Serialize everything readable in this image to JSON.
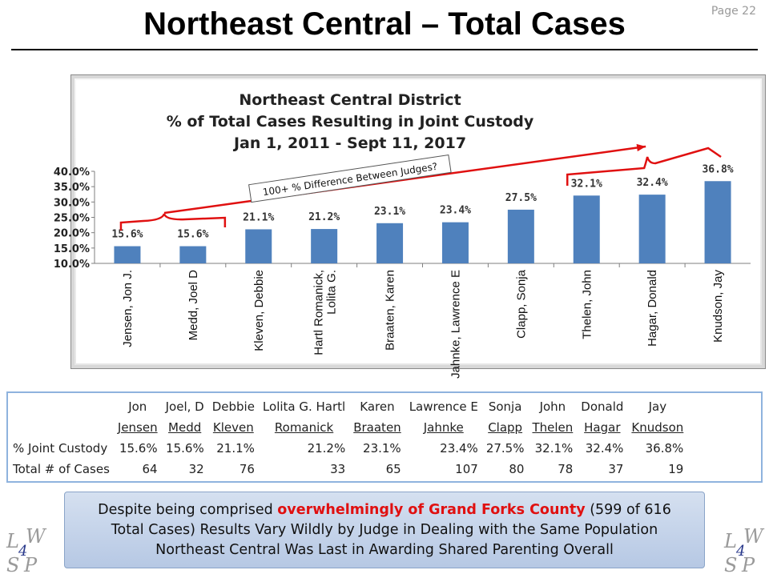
{
  "page": {
    "title": "Northeast Central – Total Cases",
    "page_number": "Page 22"
  },
  "chart_data": {
    "type": "bar",
    "title_lines": [
      "Northeast Central District",
      "% of Total Cases Resulting in Joint Custody",
      "Jan 1, 2011 - Sept 11, 2017"
    ],
    "categories": [
      "Jensen, Jon J.",
      "Medd, Joel D",
      "Kleven, Debbie",
      "Hartl Romanick, Lolita G.",
      "Braaten, Karen",
      "Jahnke, Lawrence E",
      "Clapp, Sonja",
      "Thelen, John",
      "Hagar, Donald",
      "Knudson, Jay"
    ],
    "values": [
      15.6,
      15.6,
      21.1,
      21.2,
      23.1,
      23.4,
      27.5,
      32.1,
      32.4,
      36.8
    ],
    "value_labels": [
      "15.6%",
      "15.6%",
      "21.1%",
      "21.2%",
      "23.1%",
      "23.4%",
      "27.5%",
      "32.1%",
      "32.4%",
      "36.8%"
    ],
    "y_ticks": [
      "10.0%",
      "15.0%",
      "20.0%",
      "25.0%",
      "30.0%",
      "35.0%",
      "40.0%"
    ],
    "ylim": [
      10,
      40
    ],
    "bar_color": "#4f81bd",
    "annotation": "100+ % Difference Between Judges?",
    "annotation_color": "#e01010"
  },
  "table": {
    "first_names": [
      "Jon",
      "Joel, D",
      "Debbie",
      "Lolita G. Hartl",
      "Karen",
      "Lawrence E",
      "Sonja",
      "John",
      "Donald",
      "Jay"
    ],
    "last_names": [
      "Jensen",
      "Medd",
      "Kleven",
      "Romanick",
      "Braaten",
      "Jahnke",
      "Clapp",
      "Thelen",
      "Hagar",
      "Knudson"
    ],
    "row1_label": "% Joint Custody",
    "row1": [
      "15.6%",
      "15.6%",
      "21.1%",
      "21.2%",
      "23.1%",
      "23.4%",
      "27.5%",
      "32.1%",
      "32.4%",
      "36.8%"
    ],
    "row2_label": "Total # of Cases",
    "row2": [
      "64",
      "32",
      "76",
      "33",
      "65",
      "107",
      "80",
      "78",
      "37",
      "19"
    ]
  },
  "callout": {
    "line1_pre": "Despite being comprised ",
    "line1_highlight": "overwhelmingly of Grand Forks County",
    "line1_post": " (599 of 616",
    "line2": "Total Cases) Results Vary Wildly by Judge in Dealing with the Same Population",
    "line3": "Northeast Central Was Last in Awarding Shared Parenting Overall"
  },
  "logo": {
    "letters": [
      "L",
      "W",
      "S",
      "P"
    ],
    "number": "4"
  }
}
